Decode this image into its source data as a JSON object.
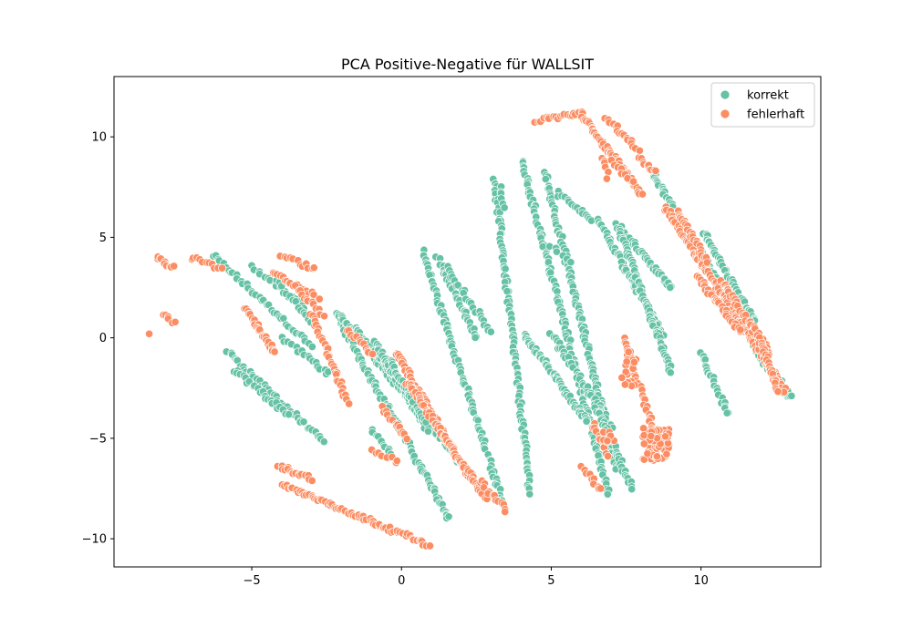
{
  "chart_data": {
    "type": "scatter",
    "title": "PCA Positive-Negative für WALLSIT",
    "xlabel": "",
    "ylabel": "",
    "xlim": [
      -9.6,
      14.0
    ],
    "ylim": [
      -11.4,
      13.0
    ],
    "xticks": [
      -5,
      0,
      5,
      10
    ],
    "yticks": [
      -10,
      -5,
      0,
      5,
      10
    ],
    "xtick_labels": [
      "−5",
      "0",
      "5",
      "10"
    ],
    "ytick_labels": [
      "−10",
      "−5",
      "0",
      "5",
      "10"
    ],
    "grid": false,
    "legend_position": "top-right",
    "series": [
      {
        "name": "korrekt",
        "color": "#66c2a5",
        "segments": [
          {
            "from": [
              -6.3,
              4.1
            ],
            "to": [
              -3.0,
              -0.4
            ],
            "n": 40
          },
          {
            "from": [
              -5.0,
              3.5
            ],
            "to": [
              -3.2,
              1.5
            ],
            "n": 18
          },
          {
            "from": [
              -4.2,
              2.8
            ],
            "to": [
              -3.0,
              0.8
            ],
            "n": 14
          },
          {
            "from": [
              -5.8,
              -0.7
            ],
            "to": [
              -2.6,
              -5.2
            ],
            "n": 45
          },
          {
            "from": [
              -5.6,
              -1.6
            ],
            "to": [
              -3.8,
              -3.8
            ],
            "n": 24
          },
          {
            "from": [
              -4.0,
              0.0
            ],
            "to": [
              -2.4,
              -1.8
            ],
            "n": 18
          },
          {
            "from": [
              -2.2,
              1.2
            ],
            "to": [
              1.6,
              -9.0
            ],
            "n": 95
          },
          {
            "from": [
              -2.0,
              1.0
            ],
            "to": [
              2.3,
              -6.8
            ],
            "n": 90
          },
          {
            "from": [
              -1.6,
              0.5
            ],
            "to": [
              1.0,
              -3.9
            ],
            "n": 60
          },
          {
            "from": [
              -0.9,
              -0.2
            ],
            "to": [
              0.9,
              -4.6
            ],
            "n": 45
          },
          {
            "from": [
              -0.4,
              -1.2
            ],
            "to": [
              0.8,
              -4.2
            ],
            "n": 30
          },
          {
            "from": [
              -1.0,
              -4.6
            ],
            "to": [
              -0.3,
              -5.8
            ],
            "n": 10
          },
          {
            "from": [
              0.7,
              4.3
            ],
            "to": [
              3.4,
              -8.3
            ],
            "n": 90
          },
          {
            "from": [
              1.2,
              4.0
            ],
            "to": [
              2.5,
              0.0
            ],
            "n": 35
          },
          {
            "from": [
              1.5,
              3.5
            ],
            "to": [
              3.0,
              0.3
            ],
            "n": 25
          },
          {
            "from": [
              3.1,
              7.9
            ],
            "to": [
              4.3,
              -7.7
            ],
            "n": 100
          },
          {
            "from": [
              3.3,
              7.5
            ],
            "to": [
              3.4,
              6.5
            ],
            "n": 6
          },
          {
            "from": [
              4.0,
              8.9
            ],
            "to": [
              6.9,
              -7.7
            ],
            "n": 125
          },
          {
            "from": [
              4.8,
              8.2
            ],
            "to": [
              7.2,
              -6.6
            ],
            "n": 110
          },
          {
            "from": [
              5.2,
              7.2
            ],
            "to": [
              6.4,
              5.8
            ],
            "n": 16
          },
          {
            "from": [
              4.1,
              0.2
            ],
            "to": [
              6.2,
              -4.2
            ],
            "n": 60
          },
          {
            "from": [
              5.0,
              0.2
            ],
            "to": [
              7.0,
              -4.4
            ],
            "n": 45
          },
          {
            "from": [
              5.0,
              4.5
            ],
            "to": [
              5.6,
              3.8
            ],
            "n": 6
          },
          {
            "from": [
              6.6,
              5.8
            ],
            "to": [
              8.7,
              0.2
            ],
            "n": 60
          },
          {
            "from": [
              7.2,
              5.6
            ],
            "to": [
              9.0,
              2.5
            ],
            "n": 40
          },
          {
            "from": [
              7.3,
              5.2
            ],
            "to": [
              9.0,
              -1.7
            ],
            "n": 65
          },
          {
            "from": [
              6.5,
              -3.5
            ],
            "to": [
              7.7,
              -7.5
            ],
            "n": 35
          },
          {
            "from": [
              8.4,
              8.1
            ],
            "to": [
              12.9,
              -3.0
            ],
            "n": 140
          },
          {
            "from": [
              10.1,
              5.2
            ],
            "to": [
              11.8,
              0.8
            ],
            "n": 45
          },
          {
            "from": [
              10.0,
              -0.8
            ],
            "to": [
              10.9,
              -3.8
            ],
            "n": 25
          },
          {
            "from": [
              11.9,
              -0.8
            ],
            "to": [
              13.0,
              -2.9
            ],
            "n": 30
          }
        ]
      },
      {
        "name": "fehlerhaft",
        "color": "#fc8d62",
        "segments": [
          {
            "from": [
              -8.2,
              4.0
            ],
            "to": [
              -7.6,
              3.5
            ],
            "n": 10
          },
          {
            "from": [
              -8.0,
              1.2
            ],
            "to": [
              -7.6,
              0.7
            ],
            "n": 6
          },
          {
            "from": [
              -8.4,
              0.1
            ],
            "to": [
              -8.4,
              0.1
            ],
            "n": 1
          },
          {
            "from": [
              -7.0,
              4.0
            ],
            "to": [
              -6.0,
              3.4
            ],
            "n": 14
          },
          {
            "from": [
              -5.2,
              1.5
            ],
            "to": [
              -4.2,
              -0.8
            ],
            "n": 28
          },
          {
            "from": [
              -4.3,
              3.2
            ],
            "to": [
              -2.8,
              2.0
            ],
            "n": 20
          },
          {
            "from": [
              -4.0,
              4.1
            ],
            "to": [
              -2.9,
              3.4
            ],
            "n": 12
          },
          {
            "from": [
              -3.5,
              2.5
            ],
            "to": [
              -2.6,
              1.0
            ],
            "n": 14
          },
          {
            "from": [
              -3.0,
              1.2
            ],
            "to": [
              -1.8,
              -3.2
            ],
            "n": 35
          },
          {
            "from": [
              -1.8,
              0.4
            ],
            "to": [
              -1.0,
              -0.8
            ],
            "n": 12
          },
          {
            "from": [
              -0.2,
              -0.7
            ],
            "to": [
              2.2,
              -6.8
            ],
            "n": 75
          },
          {
            "from": [
              0.2,
              -2.2
            ],
            "to": [
              2.8,
              -8.0
            ],
            "n": 70
          },
          {
            "from": [
              -0.6,
              -3.5
            ],
            "to": [
              0.2,
              -5.0
            ],
            "n": 14
          },
          {
            "from": [
              -1.0,
              -5.6
            ],
            "to": [
              -0.1,
              -6.2
            ],
            "n": 8
          },
          {
            "from": [
              -4.1,
              -6.4
            ],
            "to": [
              -3.0,
              -7.0
            ],
            "n": 18
          },
          {
            "from": [
              -4.0,
              -7.3
            ],
            "to": [
              0.9,
              -10.3
            ],
            "n": 75
          },
          {
            "from": [
              2.6,
              -7.1
            ],
            "to": [
              3.5,
              -8.6
            ],
            "n": 14
          },
          {
            "from": [
              4.5,
              10.8
            ],
            "to": [
              6.0,
              11.2
            ],
            "n": 20
          },
          {
            "from": [
              6.0,
              11.1
            ],
            "to": [
              8.0,
              7.2
            ],
            "n": 55
          },
          {
            "from": [
              6.8,
              11.0
            ],
            "to": [
              7.9,
              9.4
            ],
            "n": 18
          },
          {
            "from": [
              6.7,
              9.0
            ],
            "to": [
              6.9,
              8.0
            ],
            "n": 6
          },
          {
            "from": [
              7.0,
              8.8
            ],
            "to": [
              7.7,
              7.8
            ],
            "n": 8
          },
          {
            "from": [
              7.4,
              0.0
            ],
            "to": [
              8.4,
              -4.5
            ],
            "n": 30
          },
          {
            "from": [
              7.9,
              9.0
            ],
            "to": [
              8.5,
              8.2
            ],
            "n": 10
          },
          {
            "from": [
              8.8,
              6.5
            ],
            "to": [
              12.8,
              -2.6
            ],
            "n": 120
          },
          {
            "from": [
              9.2,
              6.3
            ],
            "to": [
              10.2,
              3.8
            ],
            "n": 25
          },
          {
            "from": [
              9.9,
              3.0
            ],
            "to": [
              11.3,
              0.3
            ],
            "n": 35
          },
          {
            "from": [
              10.7,
              2.8
            ],
            "to": [
              12.3,
              -0.8
            ],
            "n": 40
          },
          {
            "from": [
              11.8,
              0.6
            ],
            "to": [
              12.6,
              -2.7
            ],
            "n": 30
          },
          {
            "from": [
              6.4,
              -4.3
            ],
            "to": [
              6.9,
              -5.8
            ],
            "n": 12
          },
          {
            "from": [
              6.0,
              -6.5
            ],
            "to": [
              6.7,
              -7.6
            ],
            "n": 10
          }
        ],
        "clusters": [
          {
            "center": [
              8.5,
              -5.3
            ],
            "spread": [
              0.45,
              0.8
            ],
            "n": 70
          },
          {
            "center": [
              7.6,
              -1.5
            ],
            "spread": [
              0.25,
              0.9
            ],
            "n": 20
          },
          {
            "center": [
              6.9,
              -4.9
            ],
            "spread": [
              0.2,
              0.5
            ],
            "n": 10
          }
        ]
      }
    ]
  }
}
